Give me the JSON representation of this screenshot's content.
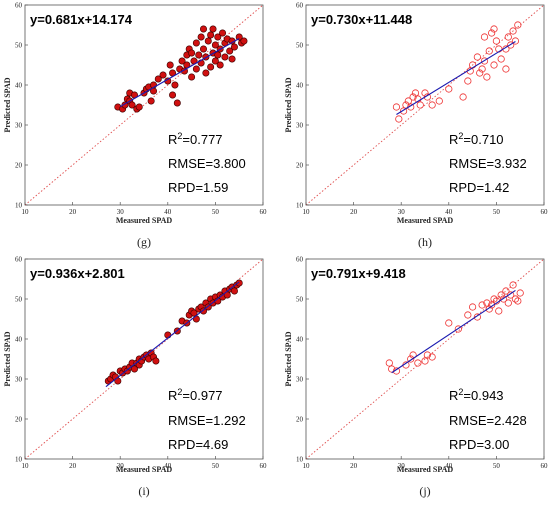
{
  "figure": {
    "axis_x_label": "Measured SPAD",
    "axis_y_label": "Predicted SPAD"
  },
  "chart_data": [
    {
      "type": "scatter",
      "panel_label": "(g)",
      "marker": "filled",
      "equation": "y=0.681x+14.174",
      "r2_value": "=0.777",
      "rmse": "RMSE=3.800",
      "rpd": "RPD=1.59",
      "xlabel": "Measured SPAD",
      "ylabel": "Predicted SPAD",
      "xlim": [
        10,
        60
      ],
      "ylim": [
        10,
        60
      ],
      "xticks": [
        "10",
        "20",
        "30",
        "40",
        "50",
        "60"
      ],
      "yticks": [
        "10",
        "20",
        "30",
        "40",
        "50",
        "60"
      ],
      "fit": {
        "slope": 0.681,
        "intercept": 14.174,
        "x_range": [
          30,
          55
        ]
      },
      "points": [
        [
          29.5,
          34.5
        ],
        [
          30.5,
          34
        ],
        [
          31,
          35
        ],
        [
          31.5,
          36.5
        ],
        [
          32,
          38
        ],
        [
          32,
          36
        ],
        [
          32.5,
          35
        ],
        [
          33,
          37.5
        ],
        [
          33.5,
          34
        ],
        [
          34,
          34.5
        ],
        [
          35,
          38
        ],
        [
          35.5,
          39
        ],
        [
          36,
          39.5
        ],
        [
          36.5,
          36
        ],
        [
          37,
          38.5
        ],
        [
          37,
          40
        ],
        [
          38,
          41.5
        ],
        [
          39,
          42.5
        ],
        [
          40,
          41
        ],
        [
          40.5,
          45
        ],
        [
          41,
          37.5
        ],
        [
          41,
          43
        ],
        [
          41.5,
          40
        ],
        [
          42,
          35.5
        ],
        [
          42.5,
          44
        ],
        [
          43,
          46
        ],
        [
          43.5,
          43.5
        ],
        [
          44,
          47.5
        ],
        [
          44,
          45
        ],
        [
          44.5,
          49
        ],
        [
          45,
          42
        ],
        [
          45,
          48
        ],
        [
          45.5,
          46
        ],
        [
          46,
          44
        ],
        [
          46,
          50.5
        ],
        [
          46.5,
          47.5
        ],
        [
          47,
          52
        ],
        [
          47,
          45.5
        ],
        [
          47.5,
          49
        ],
        [
          47.5,
          54
        ],
        [
          48,
          43
        ],
        [
          48,
          47
        ],
        [
          48.5,
          51
        ],
        [
          49,
          44.5
        ],
        [
          49,
          52.5
        ],
        [
          49.5,
          48
        ],
        [
          49.5,
          54
        ],
        [
          50,
          46
        ],
        [
          50,
          50
        ],
        [
          50.5,
          52
        ],
        [
          50.5,
          47.5
        ],
        [
          51,
          45
        ],
        [
          51,
          49
        ],
        [
          51.5,
          53
        ],
        [
          52,
          47
        ],
        [
          52,
          50.5
        ],
        [
          52.5,
          51.5
        ],
        [
          53,
          48.5
        ],
        [
          53.5,
          46.5
        ],
        [
          53.5,
          51
        ],
        [
          54,
          49.5
        ],
        [
          55,
          52
        ],
        [
          55.5,
          50.5
        ],
        [
          56,
          51
        ]
      ]
    },
    {
      "type": "scatter",
      "panel_label": "(h)",
      "marker": "hollow",
      "equation": "y=0.730x+11.448",
      "r2_value": "=0.710",
      "rmse": "RMSE=3.932",
      "rpd": "RPD=1.42",
      "xlabel": "Measured SPAD",
      "ylabel": "Predicted SPAD",
      "xlim": [
        10,
        60
      ],
      "ylim": [
        10,
        60
      ],
      "xticks": [
        "10",
        "20",
        "30",
        "40",
        "50",
        "60"
      ],
      "yticks": [
        "10",
        "20",
        "30",
        "40",
        "50",
        "60"
      ],
      "fit": {
        "slope": 0.73,
        "intercept": 11.448,
        "x_range": [
          29,
          54
        ]
      },
      "points": [
        [
          29,
          34.5
        ],
        [
          29.5,
          31.5
        ],
        [
          30.5,
          33.5
        ],
        [
          31,
          35
        ],
        [
          31.5,
          36
        ],
        [
          32,
          34.5
        ],
        [
          32.5,
          37
        ],
        [
          33,
          38
        ],
        [
          33.5,
          36.5
        ],
        [
          34,
          35
        ],
        [
          35,
          38
        ],
        [
          35.5,
          37
        ],
        [
          36.5,
          35
        ],
        [
          38,
          36
        ],
        [
          40,
          39
        ],
        [
          43,
          37
        ],
        [
          44,
          41
        ],
        [
          44.5,
          43.5
        ],
        [
          45,
          45
        ],
        [
          46,
          47
        ],
        [
          46.5,
          43
        ],
        [
          47,
          44
        ],
        [
          47.5,
          46
        ],
        [
          47.5,
          52
        ],
        [
          48,
          42
        ],
        [
          48.5,
          48.5
        ],
        [
          49,
          53
        ],
        [
          49.5,
          45
        ],
        [
          49.5,
          54
        ],
        [
          50,
          51
        ],
        [
          50.5,
          49
        ],
        [
          51,
          46.5
        ],
        [
          52,
          44
        ],
        [
          52,
          49
        ],
        [
          52.5,
          52
        ],
        [
          53,
          50
        ],
        [
          53.5,
          53.5
        ],
        [
          54,
          51
        ],
        [
          54.5,
          55
        ]
      ]
    },
    {
      "type": "scatter",
      "panel_label": "(i)",
      "marker": "filled",
      "equation": "y=0.936x+2.801",
      "r2_value": "=0.977",
      "rmse": "RMSE=1.292",
      "rpd": "RPD=4.69",
      "xlabel": "Measured SPAD",
      "ylabel": "Predicted SPAD",
      "xlim": [
        10,
        60
      ],
      "ylim": [
        10,
        60
      ],
      "xticks": [
        "10",
        "20",
        "30",
        "40",
        "50",
        "60"
      ],
      "yticks": [
        "10",
        "20",
        "30",
        "40",
        "50",
        "60"
      ],
      "fit": {
        "slope": 0.936,
        "intercept": 2.801,
        "x_range": [
          27,
          55
        ]
      },
      "points": [
        [
          27.5,
          29.5
        ],
        [
          28,
          30
        ],
        [
          28.5,
          31
        ],
        [
          29,
          30.5
        ],
        [
          29.5,
          29.5
        ],
        [
          30,
          32
        ],
        [
          30.5,
          31.5
        ],
        [
          31,
          32.5
        ],
        [
          31.5,
          32
        ],
        [
          32,
          33
        ],
        [
          32.5,
          34
        ],
        [
          33,
          32.5
        ],
        [
          33.5,
          34
        ],
        [
          34,
          35
        ],
        [
          34,
          33.5
        ],
        [
          34.5,
          34.5
        ],
        [
          35,
          35.5
        ],
        [
          35.5,
          36
        ],
        [
          36,
          35
        ],
        [
          36.5,
          36.5
        ],
        [
          37,
          35.5
        ],
        [
          37.5,
          34.5
        ],
        [
          40,
          41
        ],
        [
          42,
          42
        ],
        [
          43,
          44.5
        ],
        [
          44,
          44
        ],
        [
          44.5,
          46
        ],
        [
          45,
          47
        ],
        [
          45.5,
          46.5
        ],
        [
          46,
          45
        ],
        [
          46.5,
          47.5
        ],
        [
          47,
          48
        ],
        [
          47.5,
          47
        ],
        [
          48,
          49
        ],
        [
          48.5,
          48
        ],
        [
          49,
          50
        ],
        [
          49.5,
          49
        ],
        [
          50,
          50.5
        ],
        [
          50.5,
          49.5
        ],
        [
          51,
          51
        ],
        [
          51.5,
          50.5
        ],
        [
          52,
          52
        ],
        [
          52.5,
          51
        ],
        [
          53,
          52.5
        ],
        [
          53.5,
          53
        ],
        [
          54,
          52
        ],
        [
          54.5,
          53.5
        ],
        [
          55,
          54
        ]
      ]
    },
    {
      "type": "scatter",
      "panel_label": "(j)",
      "marker": "hollow",
      "equation": "y=0.791x+9.418",
      "r2_value": "=0.943",
      "rmse": "RMSE=2.428",
      "rpd": "RPD=3.00",
      "xlabel": "Measured SPAD",
      "ylabel": "Predicted SPAD",
      "xlim": [
        10,
        60
      ],
      "ylim": [
        10,
        60
      ],
      "xticks": [
        "10",
        "20",
        "30",
        "40",
        "50",
        "60"
      ],
      "yticks": [
        "10",
        "20",
        "30",
        "40",
        "50",
        "60"
      ],
      "fit": {
        "slope": 0.791,
        "intercept": 9.418,
        "x_range": [
          28,
          54
        ]
      },
      "points": [
        [
          27.5,
          34
        ],
        [
          28,
          32.5
        ],
        [
          29,
          32
        ],
        [
          31,
          33.5
        ],
        [
          32,
          35
        ],
        [
          32.5,
          36
        ],
        [
          33.5,
          34
        ],
        [
          35,
          34.5
        ],
        [
          35.5,
          36
        ],
        [
          36.5,
          35.5
        ],
        [
          40,
          44
        ],
        [
          42,
          42.5
        ],
        [
          44,
          46
        ],
        [
          45,
          48
        ],
        [
          46,
          45.5
        ],
        [
          47,
          48.5
        ],
        [
          48,
          49
        ],
        [
          48.5,
          47.5
        ],
        [
          49,
          48.5
        ],
        [
          49.5,
          50
        ],
        [
          50,
          49.5
        ],
        [
          50.5,
          47
        ],
        [
          51,
          51
        ],
        [
          51.5,
          50
        ],
        [
          52,
          52
        ],
        [
          52.5,
          49
        ],
        [
          53,
          51
        ],
        [
          53.5,
          53.5
        ],
        [
          54,
          50
        ],
        [
          54.5,
          49.5
        ],
        [
          55,
          51.5
        ]
      ]
    }
  ]
}
